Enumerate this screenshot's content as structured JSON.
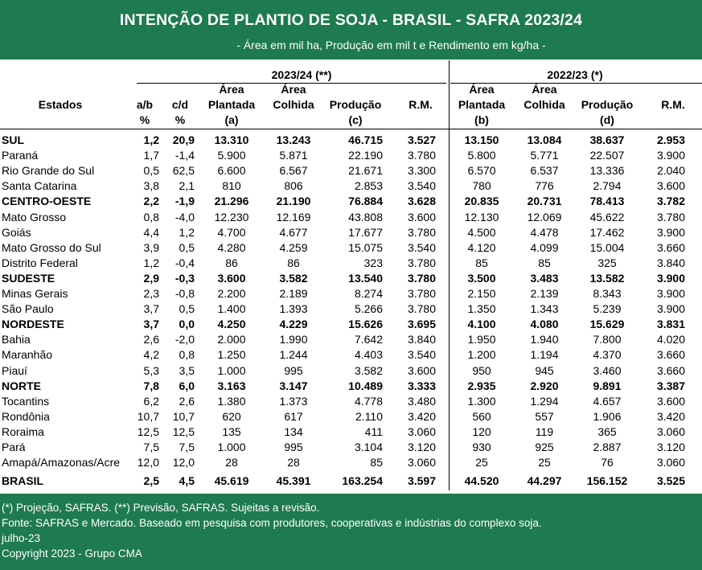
{
  "header": {
    "title": "INTENÇÃO DE PLANTIO DE SOJA - BRASIL - SAFRA 2023/24",
    "subtitle": "- Área em mil ha, Produção em mil t e Rendimento em kg/ha -"
  },
  "table": {
    "period_new": "2023/24 (**)",
    "period_old": "2022/23 (*)",
    "h_estados": "Estados",
    "h_ab": "a/b",
    "h_cd": "c/d",
    "h_pct": "%",
    "h_area": "Área",
    "h_plantada": "Plantada",
    "h_colhida": "Colhida",
    "h_producao": "Produção",
    "h_rm": "R.M.",
    "h_a": "(a)",
    "h_c": "(c)",
    "h_b": "(b)",
    "h_d": "(d)",
    "rows": [
      {
        "name": "SUL",
        "bold": true,
        "ab": "1,2",
        "cd": "20,9",
        "ap": "13.310",
        "ac": "13.243",
        "prod": "46.715",
        "rm": "3.527",
        "ap2": "13.150",
        "ac2": "13.084",
        "prod2": "38.637",
        "rm2": "2.953"
      },
      {
        "name": "Paraná",
        "bold": false,
        "ab": "1,7",
        "cd": "-1,4",
        "ap": "5.900",
        "ac": "5.871",
        "prod": "22.190",
        "rm": "3.780",
        "ap2": "5.800",
        "ac2": "5.771",
        "prod2": "22.507",
        "rm2": "3.900"
      },
      {
        "name": "Rio Grande do Sul",
        "bold": false,
        "ab": "0,5",
        "cd": "62,5",
        "ap": "6.600",
        "ac": "6.567",
        "prod": "21.671",
        "rm": "3.300",
        "ap2": "6.570",
        "ac2": "6.537",
        "prod2": "13.336",
        "rm2": "2.040"
      },
      {
        "name": "Santa Catarina",
        "bold": false,
        "ab": "3,8",
        "cd": "2,1",
        "ap": "810",
        "ac": "806",
        "prod": "2.853",
        "rm": "3.540",
        "ap2": "780",
        "ac2": "776",
        "prod2": "2.794",
        "rm2": "3.600"
      },
      {
        "name": "CENTRO-OESTE",
        "bold": true,
        "ab": "2,2",
        "cd": "-1,9",
        "ap": "21.296",
        "ac": "21.190",
        "prod": "76.884",
        "rm": "3.628",
        "ap2": "20.835",
        "ac2": "20.731",
        "prod2": "78.413",
        "rm2": "3.782"
      },
      {
        "name": "Mato Grosso",
        "bold": false,
        "ab": "0,8",
        "cd": "-4,0",
        "ap": "12.230",
        "ac": "12.169",
        "prod": "43.808",
        "rm": "3.600",
        "ap2": "12.130",
        "ac2": "12.069",
        "prod2": "45.622",
        "rm2": "3.780"
      },
      {
        "name": "Goiás",
        "bold": false,
        "ab": "4,4",
        "cd": "1,2",
        "ap": "4.700",
        "ac": "4.677",
        "prod": "17.677",
        "rm": "3.780",
        "ap2": "4.500",
        "ac2": "4.478",
        "prod2": "17.462",
        "rm2": "3.900"
      },
      {
        "name": "Mato Grosso do Sul",
        "bold": false,
        "ab": "3,9",
        "cd": "0,5",
        "ap": "4.280",
        "ac": "4.259",
        "prod": "15.075",
        "rm": "3.540",
        "ap2": "4.120",
        "ac2": "4.099",
        "prod2": "15.004",
        "rm2": "3.660"
      },
      {
        "name": "Distrito Federal",
        "bold": false,
        "ab": "1,2",
        "cd": "-0,4",
        "ap": "86",
        "ac": "86",
        "prod": "323",
        "rm": "3.780",
        "ap2": "85",
        "ac2": "85",
        "prod2": "325",
        "rm2": "3.840"
      },
      {
        "name": "SUDESTE",
        "bold": true,
        "ab": "2,9",
        "cd": "-0,3",
        "ap": "3.600",
        "ac": "3.582",
        "prod": "13.540",
        "rm": "3.780",
        "ap2": "3.500",
        "ac2": "3.483",
        "prod2": "13.582",
        "rm2": "3.900"
      },
      {
        "name": "Minas Gerais",
        "bold": false,
        "ab": "2,3",
        "cd": "-0,8",
        "ap": "2.200",
        "ac": "2.189",
        "prod": "8.274",
        "rm": "3.780",
        "ap2": "2.150",
        "ac2": "2.139",
        "prod2": "8.343",
        "rm2": "3.900"
      },
      {
        "name": "São Paulo",
        "bold": false,
        "ab": "3,7",
        "cd": "0,5",
        "ap": "1.400",
        "ac": "1.393",
        "prod": "5.266",
        "rm": "3.780",
        "ap2": "1.350",
        "ac2": "1.343",
        "prod2": "5.239",
        "rm2": "3.900"
      },
      {
        "name": "NORDESTE",
        "bold": true,
        "ab": "3,7",
        "cd": "0,0",
        "ap": "4.250",
        "ac": "4.229",
        "prod": "15.626",
        "rm": "3.695",
        "ap2": "4.100",
        "ac2": "4.080",
        "prod2": "15.629",
        "rm2": "3.831"
      },
      {
        "name": "Bahia",
        "bold": false,
        "ab": "2,6",
        "cd": "-2,0",
        "ap": "2.000",
        "ac": "1.990",
        "prod": "7.642",
        "rm": "3.840",
        "ap2": "1.950",
        "ac2": "1.940",
        "prod2": "7.800",
        "rm2": "4.020"
      },
      {
        "name": "Maranhão",
        "bold": false,
        "ab": "4,2",
        "cd": "0,8",
        "ap": "1.250",
        "ac": "1.244",
        "prod": "4.403",
        "rm": "3.540",
        "ap2": "1.200",
        "ac2": "1.194",
        "prod2": "4.370",
        "rm2": "3.660"
      },
      {
        "name": "Piauí",
        "bold": false,
        "ab": "5,3",
        "cd": "3,5",
        "ap": "1.000",
        "ac": "995",
        "prod": "3.582",
        "rm": "3.600",
        "ap2": "950",
        "ac2": "945",
        "prod2": "3.460",
        "rm2": "3.660"
      },
      {
        "name": "NORTE",
        "bold": true,
        "ab": "7,8",
        "cd": "6,0",
        "ap": "3.163",
        "ac": "3.147",
        "prod": "10.489",
        "rm": "3.333",
        "ap2": "2.935",
        "ac2": "2.920",
        "prod2": "9.891",
        "rm2": "3.387"
      },
      {
        "name": "Tocantins",
        "bold": false,
        "ab": "6,2",
        "cd": "2,6",
        "ap": "1.380",
        "ac": "1.373",
        "prod": "4.778",
        "rm": "3.480",
        "ap2": "1.300",
        "ac2": "1.294",
        "prod2": "4.657",
        "rm2": "3.600"
      },
      {
        "name": "Rondônia",
        "bold": false,
        "ab": "10,7",
        "cd": "10,7",
        "ap": "620",
        "ac": "617",
        "prod": "2.110",
        "rm": "3.420",
        "ap2": "560",
        "ac2": "557",
        "prod2": "1.906",
        "rm2": "3.420"
      },
      {
        "name": "Roraima",
        "bold": false,
        "ab": "12,5",
        "cd": "12,5",
        "ap": "135",
        "ac": "134",
        "prod": "411",
        "rm": "3.060",
        "ap2": "120",
        "ac2": "119",
        "prod2": "365",
        "rm2": "3.060"
      },
      {
        "name": "Pará",
        "bold": false,
        "ab": "7,5",
        "cd": "7,5",
        "ap": "1.000",
        "ac": "995",
        "prod": "3.104",
        "rm": "3.120",
        "ap2": "930",
        "ac2": "925",
        "prod2": "2.887",
        "rm2": "3.120"
      },
      {
        "name": "Amapá/Amazonas/Acre",
        "bold": false,
        "ab": "12,0",
        "cd": "12,0",
        "ap": "28",
        "ac": "28",
        "prod": "85",
        "rm": "3.060",
        "ap2": "25",
        "ac2": "25",
        "prod2": "76",
        "rm2": "3.060"
      },
      {
        "name": "BRASIL",
        "bold": true,
        "ab": "2,5",
        "cd": "4,5",
        "ap": "45.619",
        "ac": "45.391",
        "prod": "163.254",
        "rm": "3.597",
        "ap2": "44.520",
        "ac2": "44.297",
        "prod2": "156.152",
        "rm2": "3.525"
      }
    ]
  },
  "footer": {
    "line1": "(*) Projeção, SAFRAS. (**) Previsão, SAFRAS. Sujeitas a revisão.",
    "line2": "Fonte: SAFRAS e Mercado. Baseado em pesquisa com produtores, cooperativas e indústrias do complexo soja.",
    "line3": "julho-23",
    "line4": "Copyright 2023 - Grupo CMA"
  },
  "colors": {
    "brand_green": "#1e7a4f"
  }
}
